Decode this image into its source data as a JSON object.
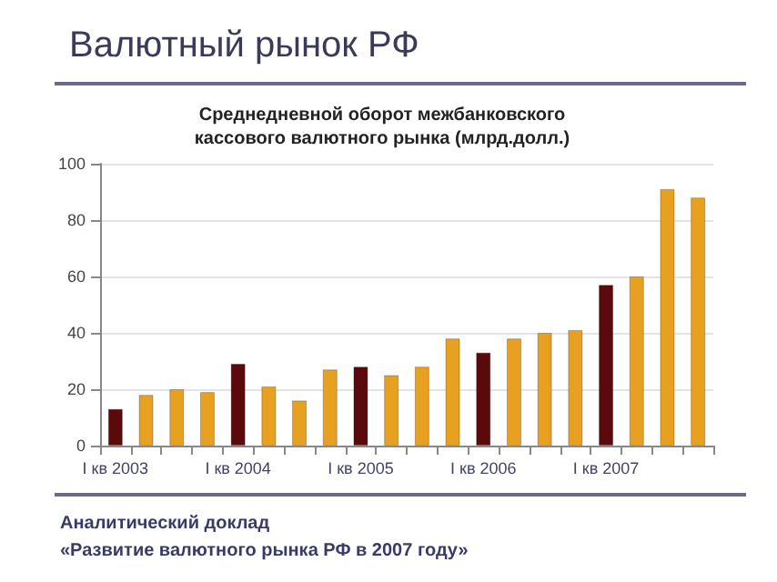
{
  "chart_data": {
    "type": "bar",
    "title": "Валютный рынок РФ",
    "subtitle": "Среднедневной оборот межбанковского\nкассового валютного рынка (млрд.долл.)",
    "categories": [
      "I кв 2003",
      null,
      null,
      null,
      "I кв 2004",
      null,
      null,
      null,
      "I кв 2005",
      null,
      null,
      null,
      "I кв 2006",
      null,
      null,
      null,
      "I кв 2007",
      null,
      null,
      null
    ],
    "values": [
      13,
      18,
      20,
      19,
      29,
      21,
      16,
      27,
      28,
      25,
      28,
      38,
      33,
      38,
      40,
      41,
      57,
      60,
      91,
      88
    ],
    "colors": [
      "#5a0a0a",
      "#e8a020",
      "#e8a020",
      "#e8a020",
      "#5a0a0a",
      "#e8a020",
      "#e8a020",
      "#e8a020",
      "#5a0a0a",
      "#e8a020",
      "#e8a020",
      "#e8a020",
      "#5a0a0a",
      "#e8a020",
      "#e8a020",
      "#e8a020",
      "#5a0a0a",
      "#e8a020",
      "#e8a020",
      "#e8a020"
    ],
    "ylim": [
      0,
      100
    ],
    "yticks": [
      0,
      20,
      40,
      60,
      80,
      100
    ],
    "grid": "y",
    "annotations": [
      "Аналитический доклад",
      "«Развитие валютного рынка РФ в 2007 году»"
    ]
  }
}
